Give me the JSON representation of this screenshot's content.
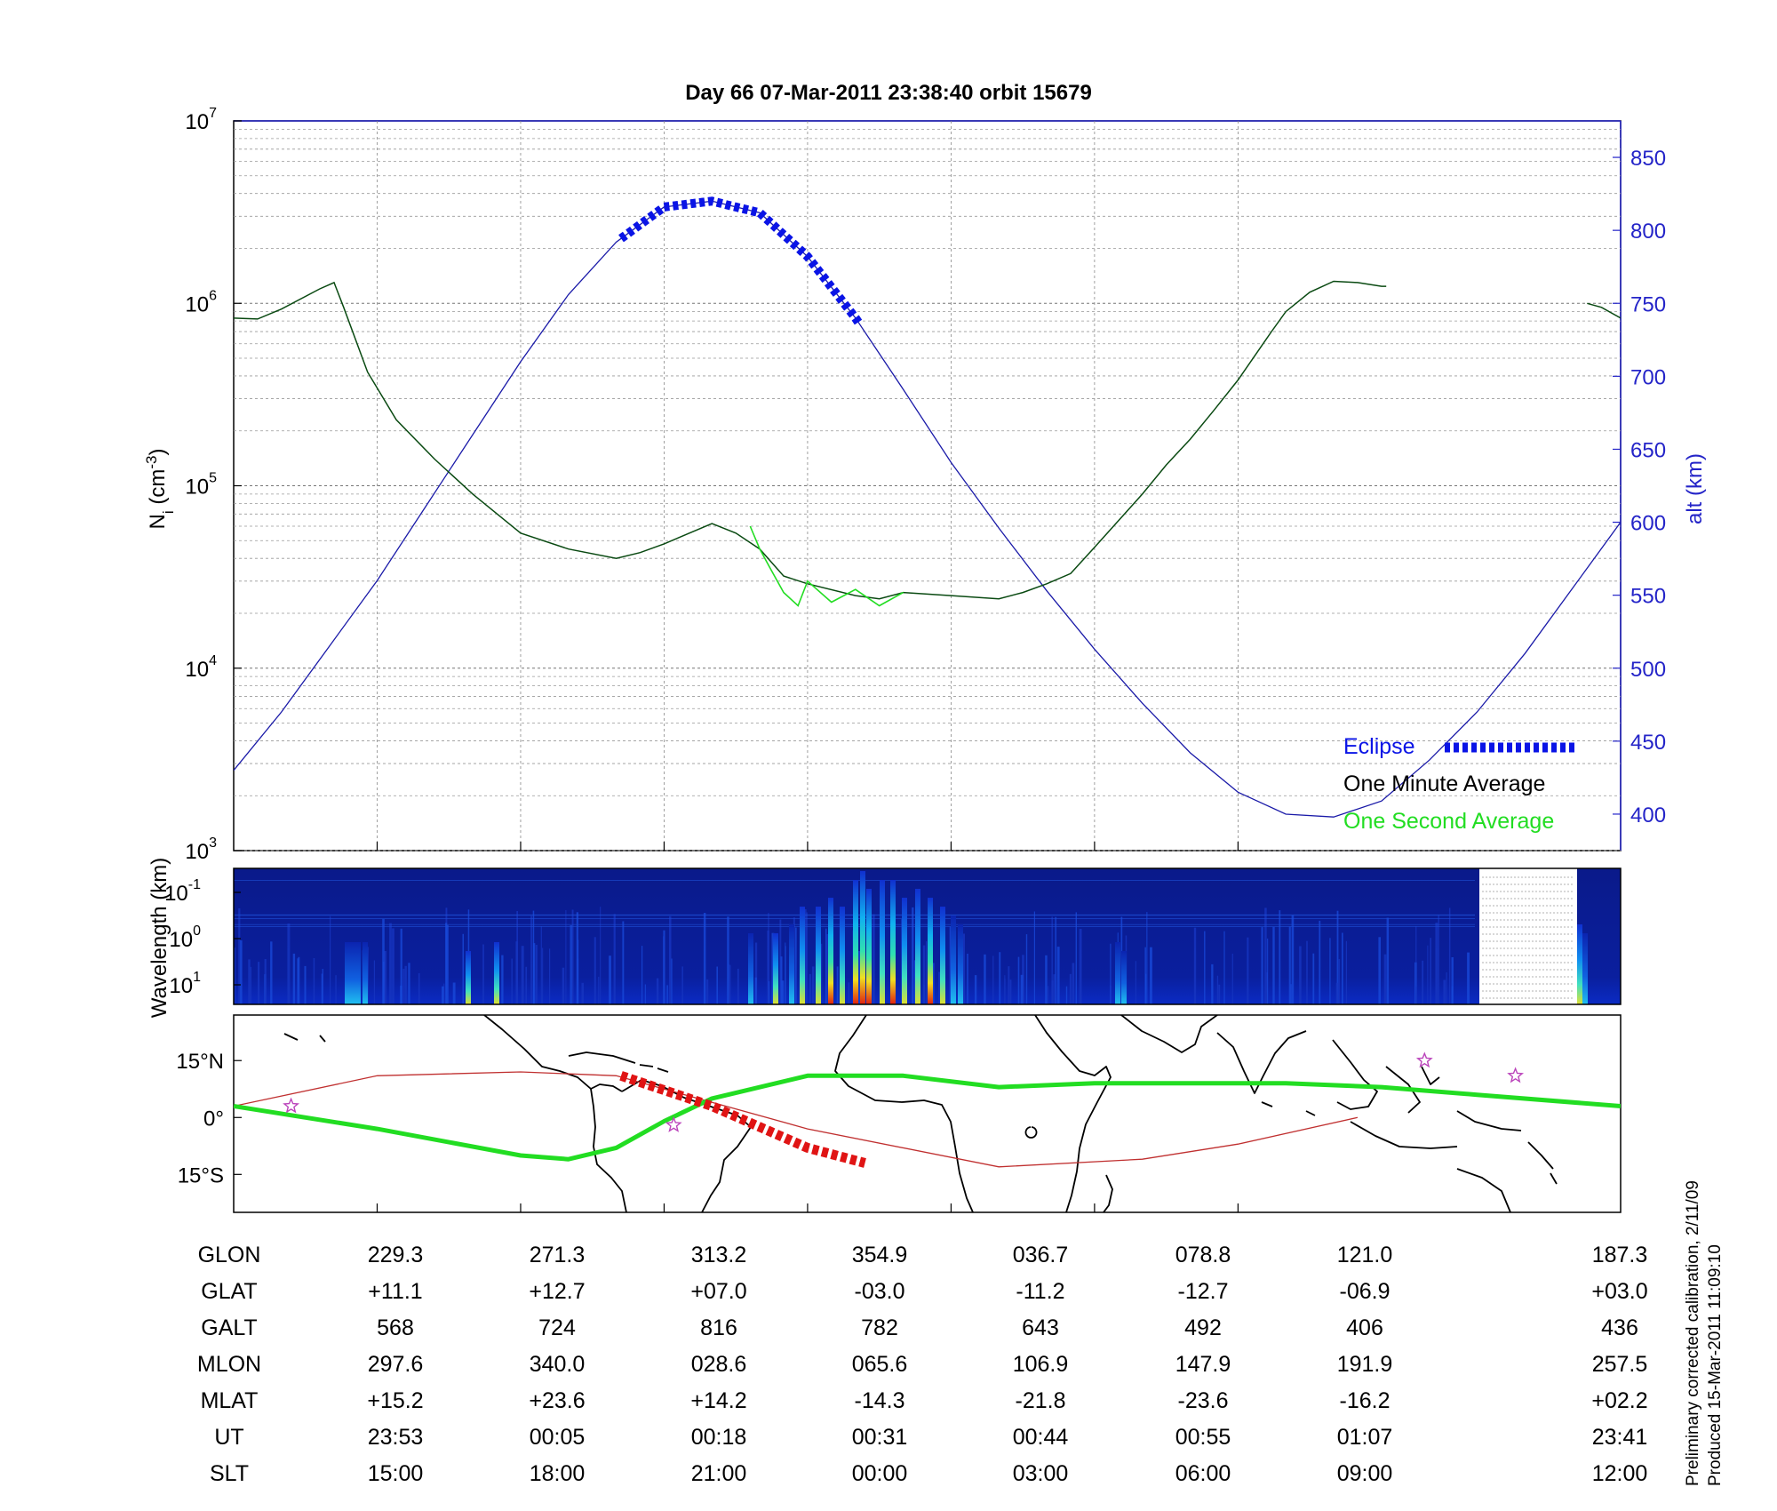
{
  "title": "Day 66  07-Mar-2011 23:38:40   orbit 15679",
  "footnote": {
    "line1": "Preliminary corrected calibration, 2/11/09",
    "line2": "Produced 15-Mar-2011 11:09:10"
  },
  "colors": {
    "altitude": "#1a1aa8",
    "axis_right": "#2424c8",
    "eclipse": "#0a14e6",
    "minute_avg": "#0a4a12",
    "second_avg": "#22dd22",
    "ground_track_green": "#22dd22",
    "eclipse_track_red": "#e01414",
    "red_line": "#c03030",
    "star": "#bb44bb"
  },
  "chart_data": [
    {
      "type": "line",
      "panel": "ion-density",
      "ylabel_left": "N_i (cm^-3)",
      "ylabel_right": "alt (km)",
      "yscale_left": "log",
      "ylim_left": [
        1000,
        10000000
      ],
      "left_ticks": [
        {
          "base": "10",
          "exp": "3",
          "value": 1000
        },
        {
          "base": "10",
          "exp": "4",
          "value": 10000
        },
        {
          "base": "10",
          "exp": "5",
          "value": 100000
        },
        {
          "base": "10",
          "exp": "6",
          "value": 1000000
        },
        {
          "base": "10",
          "exp": "7",
          "value": 10000000
        }
      ],
      "ylim_right": [
        375,
        875
      ],
      "right_ticks": [
        "400",
        "450",
        "500",
        "550",
        "600",
        "650",
        "700",
        "750",
        "800",
        "850"
      ],
      "x_axis": "SLT (h)",
      "xlim": [
        12,
        41
      ],
      "grid": true,
      "legend": {
        "placement": "bottom-right",
        "eclipse": "Eclipse",
        "minute": "One Minute Average",
        "second": "One Second Average"
      },
      "altitude": {
        "name": "alt (km)",
        "x": [
          12,
          13,
          14,
          15,
          16,
          17,
          18,
          19,
          20,
          21,
          22,
          23,
          24,
          25,
          26,
          27,
          28,
          29,
          30,
          31,
          32,
          33,
          34,
          35,
          36,
          37,
          38,
          39,
          40,
          41
        ],
        "y": [
          430,
          470,
          515,
          560,
          610,
          660,
          710,
          756,
          792,
          816,
          820,
          812,
          782,
          740,
          691,
          641,
          596,
          553,
          513,
          476,
          442,
          415,
          400,
          398,
          409,
          437,
          470,
          510,
          555,
          600
        ]
      },
      "minute_average": {
        "name": "One Minute Average",
        "x": [
          12,
          12.5,
          13,
          13.8,
          14.1,
          14.3,
          14.8,
          15.4,
          16.2,
          17,
          18,
          19,
          20,
          20.5,
          21,
          22,
          22.5,
          23,
          23.5,
          24,
          25,
          25.5,
          26,
          27,
          28,
          28.5,
          29,
          29.5,
          30,
          31,
          31.5,
          32,
          32.5,
          33,
          33.7,
          34,
          34.5,
          35,
          35.5,
          36,
          36.1
        ],
        "y": [
          830000,
          820000,
          930000,
          1200000,
          1300000,
          950000,
          420000,
          230000,
          140000,
          90000,
          55000,
          45000,
          40000,
          43000,
          48000,
          62000,
          55000,
          45000,
          32000,
          29000,
          25000,
          24000,
          26000,
          25000,
          24000,
          26000,
          29000,
          33000,
          46000,
          90000,
          130000,
          180000,
          260000,
          380000,
          700000,
          900000,
          1150000,
          1320000,
          1300000,
          1240000,
          1240000
        ],
        "x2": [
          40.3,
          40.6,
          41
        ],
        "y2": [
          1000000,
          950000,
          830000
        ]
      },
      "second_average": {
        "name": "One Second Average",
        "x": [
          22.8,
          23,
          23.2,
          23.5,
          23.8,
          24,
          24.5,
          25,
          25.5,
          26
        ],
        "y": [
          60000,
          45000,
          36000,
          26000,
          22000,
          30000,
          23000,
          27000,
          22000,
          26000
        ]
      },
      "eclipse": {
        "name": "Eclipse",
        "x_start": 20.1,
        "x_end": 25.1
      }
    },
    {
      "type": "heatmap",
      "panel": "wavelength-spectrogram",
      "ylabel": "Wavelength (km)",
      "y_ticks": [
        {
          "base": "10",
          "exp": "-1"
        },
        {
          "base": "10",
          "exp": "0"
        },
        {
          "base": "10",
          "exp": "1"
        }
      ],
      "colormap": "jet",
      "data_gap_slt": [
        39.2,
        41
      ]
    },
    {
      "type": "scatter",
      "panel": "ground-track-map",
      "y_ticks": [
        "15°N",
        "0°",
        "15°S"
      ],
      "ylim": [
        -25,
        27
      ],
      "xlim": [
        12,
        41
      ],
      "ground_track": {
        "x": [
          12,
          15,
          18,
          19,
          20,
          21,
          22,
          24,
          26,
          28,
          30,
          32,
          34,
          36,
          38,
          41
        ],
        "y": [
          3,
          -3,
          -10,
          -11,
          -8,
          -1,
          5,
          11,
          11,
          8,
          9,
          9,
          9,
          8,
          6,
          3
        ]
      },
      "eclipse_track": {
        "x": [
          20.1,
          22,
          24,
          25.2
        ],
        "y": [
          11,
          3,
          -8,
          -12
        ]
      },
      "red_line": {
        "x": [
          12,
          15,
          18,
          20,
          24,
          28,
          31,
          33,
          35.5
        ],
        "y": [
          3,
          11,
          12,
          11,
          -3,
          -13,
          -11,
          -7,
          0
        ]
      },
      "stars": [
        {
          "x": 13.2,
          "y": 3
        },
        {
          "x": 21.2,
          "y": -2
        },
        {
          "x": 36.9,
          "y": 15
        },
        {
          "x": 38.8,
          "y": 11
        }
      ]
    }
  ],
  "table": {
    "labels": [
      "GLON",
      "GLAT",
      "GALT",
      "MLON",
      "MLAT",
      "UT",
      "SLT"
    ],
    "columns": [
      [
        "229.3",
        "+11.1",
        "568",
        "297.6",
        "+15.2",
        "23:53",
        "15:00"
      ],
      [
        "271.3",
        "+12.7",
        "724",
        "340.0",
        "+23.6",
        "00:05",
        "18:00"
      ],
      [
        "313.2",
        "+07.0",
        "816",
        "028.6",
        "+14.2",
        "00:18",
        "21:00"
      ],
      [
        "354.9",
        "-03.0",
        "782",
        "065.6",
        "-14.3",
        "00:31",
        "00:00"
      ],
      [
        "036.7",
        "-11.2",
        "643",
        "106.9",
        "-21.8",
        "00:44",
        "03:00"
      ],
      [
        "078.8",
        "-12.7",
        "492",
        "147.9",
        "-23.6",
        "00:55",
        "06:00"
      ],
      [
        "121.0",
        "-06.9",
        "406",
        "191.9",
        "-16.2",
        "01:07",
        "09:00"
      ],
      [
        "187.3",
        "+03.0",
        "436",
        "257.5",
        "+02.2",
        "23:41",
        "12:00"
      ]
    ]
  }
}
